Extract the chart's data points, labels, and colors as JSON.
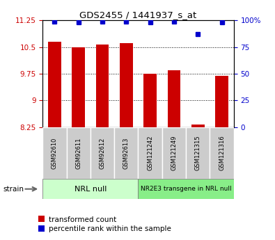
{
  "title": "GDS2455 / 1441937_s_at",
  "samples": [
    "GSM92610",
    "GSM92611",
    "GSM92612",
    "GSM92613",
    "GSM121242",
    "GSM121249",
    "GSM121315",
    "GSM121316"
  ],
  "bar_values": [
    10.65,
    10.5,
    10.57,
    10.62,
    9.75,
    9.85,
    8.32,
    9.7
  ],
  "dot_values": [
    99,
    98,
    99,
    99,
    98,
    99,
    87,
    98
  ],
  "ylim": [
    8.25,
    11.25
  ],
  "yticks": [
    8.25,
    9.0,
    9.75,
    10.5,
    11.25
  ],
  "ytick_labels": [
    "8.25",
    "9",
    "9.75",
    "10.5",
    "11.25"
  ],
  "y2lim": [
    0,
    100
  ],
  "y2ticks": [
    0,
    25,
    50,
    75,
    100
  ],
  "y2tick_labels": [
    "0",
    "25",
    "50",
    "75",
    "100%"
  ],
  "bar_color": "#cc0000",
  "dot_color": "#0000cc",
  "groups": [
    {
      "label": "NRL null",
      "start": 0,
      "end": 3,
      "color": "#ccffcc"
    },
    {
      "label": "NR2E3 transgene in NRL null",
      "start": 4,
      "end": 7,
      "color": "#88ee88"
    }
  ],
  "strain_label": "strain",
  "legend_bar_label": "transformed count",
  "legend_dot_label": "percentile rank within the sample",
  "background_color": "#ffffff",
  "tick_color_left": "#cc0000",
  "tick_color_right": "#0000cc",
  "sample_box_color": "#cccccc",
  "sample_box_edge": "#aaaaaa"
}
